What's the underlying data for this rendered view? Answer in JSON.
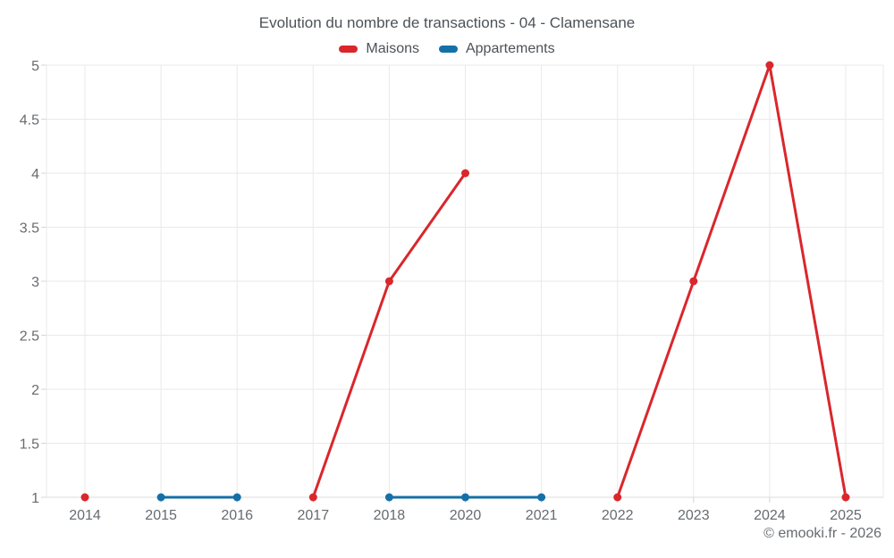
{
  "header": {
    "title": "Evolution du nombre de transactions - 04 - Clamensane"
  },
  "legend": {
    "items": [
      {
        "label": "Maisons",
        "color": "#d9272c"
      },
      {
        "label": "Appartements",
        "color": "#1570a8"
      }
    ]
  },
  "footer": {
    "copyright": "© emooki.fr - 2026"
  },
  "chart_data": {
    "type": "line",
    "title": "Evolution du nombre de transactions - 04 - Clamensane",
    "xlabel": "",
    "ylabel": "",
    "categories": [
      "2014",
      "2015",
      "2016",
      "2017",
      "2018",
      "2020",
      "2021",
      "2022",
      "2023",
      "2024",
      "2025"
    ],
    "series": [
      {
        "name": "Maisons",
        "color": "#d9272c",
        "values": [
          1,
          null,
          null,
          1,
          3,
          4,
          null,
          1,
          3,
          5,
          1
        ]
      },
      {
        "name": "Appartements",
        "color": "#1570a8",
        "values": [
          null,
          1,
          1,
          null,
          1,
          1,
          1,
          null,
          null,
          null,
          null
        ]
      }
    ],
    "ylim": [
      1,
      5
    ],
    "y_ticks": [
      5,
      4.5,
      4,
      3.5,
      3,
      2.5,
      2,
      1.5,
      1
    ],
    "grid": true,
    "legend_position": "top",
    "markers": true
  }
}
